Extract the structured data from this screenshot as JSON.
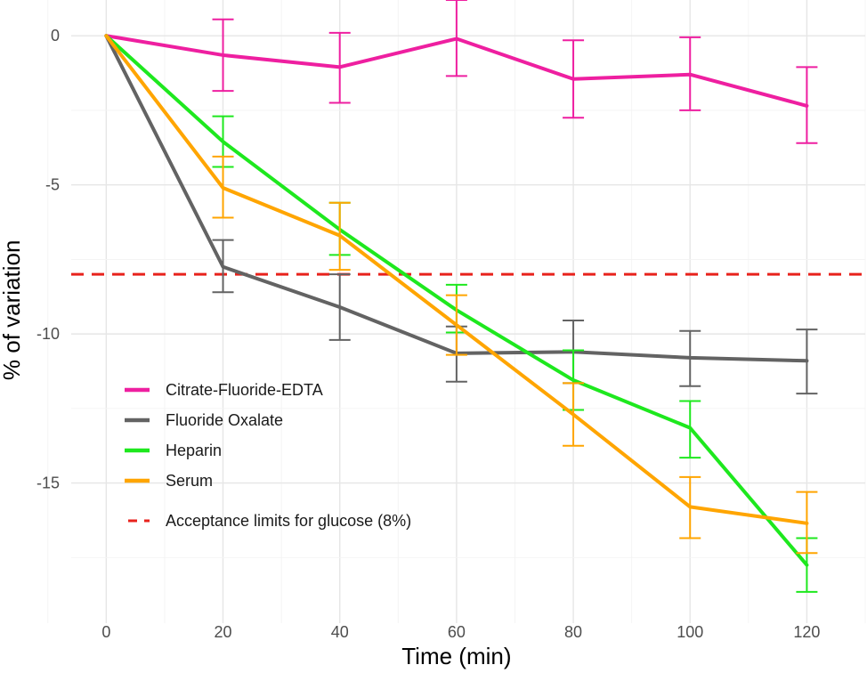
{
  "chart_data": {
    "type": "line",
    "title": "",
    "xlabel": "Time (min)",
    "ylabel": "% of variation",
    "xlim": [
      -6,
      130
    ],
    "ylim": [
      -19.7,
      1.2
    ],
    "x_ticks": [
      0,
      20,
      40,
      60,
      80,
      100,
      120
    ],
    "y_ticks": [
      0,
      -5,
      -10,
      -15
    ],
    "grid": true,
    "legend_position": "left",
    "x": [
      0,
      20,
      40,
      60,
      80,
      100,
      120
    ],
    "series": [
      {
        "name": "Citrate-Fluoride-EDTA",
        "color": "#ee1fa0",
        "values": [
          0,
          -0.65,
          -1.05,
          -0.1,
          -1.45,
          -1.3,
          -2.35
        ],
        "err_low": [
          0,
          -1.85,
          -2.25,
          -1.35,
          -2.75,
          -2.5,
          -3.6
        ],
        "err_high": [
          0,
          0.55,
          0.1,
          1.2,
          -0.15,
          -0.05,
          -1.05
        ]
      },
      {
        "name": "Fluoride Oxalate",
        "color": "#636363",
        "values": [
          0,
          -7.75,
          -9.1,
          -10.65,
          -10.6,
          -10.8,
          -10.9
        ],
        "err_low": [
          0,
          -8.6,
          -10.2,
          -11.6,
          -11.65,
          -11.75,
          -12
        ],
        "err_high": [
          0,
          -6.85,
          -8.0,
          -9.75,
          -9.55,
          -9.9,
          -9.85
        ]
      },
      {
        "name": "Heparin",
        "color": "#1ee81e",
        "values": [
          0,
          -3.55,
          -6.5,
          -9.2,
          -11.55,
          -13.15,
          -17.75
        ],
        "err_low": [
          0,
          -4.4,
          -7.35,
          -9.95,
          -12.55,
          -14.15,
          -18.65
        ],
        "err_high": [
          0,
          -2.7,
          -5.6,
          -8.35,
          -10.55,
          -12.25,
          -16.85
        ]
      },
      {
        "name": "Serum",
        "color": "#ffa500",
        "values": [
          0,
          -5.1,
          -6.7,
          -9.7,
          -12.7,
          -15.8,
          -16.35
        ],
        "err_low": [
          0,
          -6.1,
          -7.85,
          -10.7,
          -13.75,
          -16.85,
          -17.35
        ],
        "err_high": [
          0,
          -4.05,
          -5.6,
          -8.7,
          -11.65,
          -14.8,
          -15.3
        ]
      }
    ],
    "reference_line": {
      "name": "Acceptance limits for glucose (8%)",
      "y": -8,
      "color": "#e8221c",
      "style": "dashed"
    }
  }
}
